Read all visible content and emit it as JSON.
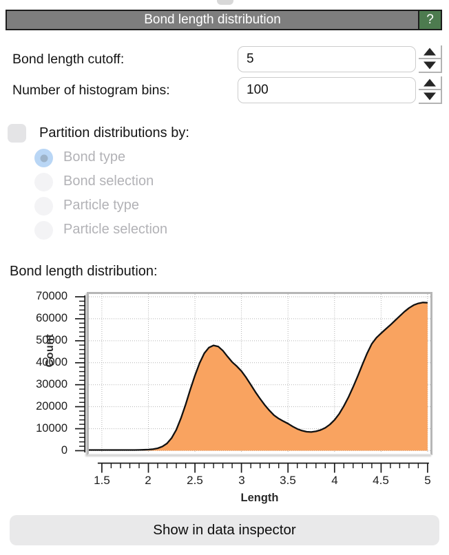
{
  "window": {
    "title": "Bond length distribution",
    "help_label": "?"
  },
  "fields": [
    {
      "label": "Bond length cutoff:",
      "value": "5"
    },
    {
      "label": "Number of histogram bins:",
      "value": "100"
    }
  ],
  "partition": {
    "checkbox_label": "Partition distributions by:",
    "checked": false,
    "options": [
      {
        "label": "Bond type",
        "selected": true
      },
      {
        "label": "Bond selection",
        "selected": false
      },
      {
        "label": "Particle type",
        "selected": false
      },
      {
        "label": "Particle selection",
        "selected": false
      }
    ]
  },
  "section_label": "Bond length distribution:",
  "footer_button_label": "Show in data inspector",
  "colors": {
    "titlebar_gray": "#7e7e7e",
    "help_green": "#4d7b4f",
    "area_fill": "#f9a360",
    "curve_line": "#111111",
    "radio_selected": "#b9d6f5",
    "disabled_text": "#b2b2b6"
  },
  "chart_data": {
    "type": "area",
    "title": "Bond length distribution",
    "xlabel": "Length",
    "ylabel": "Count",
    "xlim": [
      1.5,
      5
    ],
    "ylim": [
      0,
      70000
    ],
    "grid": "dotted",
    "legend": "none",
    "x_ticks": [
      1.5,
      2,
      2.5,
      3,
      3.5,
      4,
      4.5,
      5
    ],
    "x_tick_labels": [
      "1.5",
      "2",
      "2.5",
      "3",
      "3.5",
      "4",
      "4.5",
      "5"
    ],
    "x_minor_step": 0.1,
    "y_ticks": [
      0,
      10000,
      20000,
      30000,
      40000,
      50000,
      60000,
      70000
    ],
    "y_tick_labels": [
      "0",
      "10000",
      "20000",
      "30000",
      "40000",
      "50000",
      "60000",
      "70000"
    ],
    "y_minor_step": 2000,
    "x": [
      1.35,
      1.4,
      1.45,
      1.5,
      1.55,
      1.6,
      1.65,
      1.7,
      1.75,
      1.8,
      1.85,
      1.9,
      1.95,
      2.0,
      2.05,
      2.1,
      2.15,
      2.2,
      2.25,
      2.3,
      2.35,
      2.4,
      2.45,
      2.5,
      2.55,
      2.6,
      2.65,
      2.7,
      2.75,
      2.8,
      2.85,
      2.9,
      2.95,
      3.0,
      3.05,
      3.1,
      3.15,
      3.2,
      3.25,
      3.3,
      3.35,
      3.4,
      3.45,
      3.5,
      3.55,
      3.6,
      3.65,
      3.7,
      3.75,
      3.8,
      3.85,
      3.9,
      3.95,
      4.0,
      4.05,
      4.1,
      4.15,
      4.2,
      4.25,
      4.3,
      4.35,
      4.4,
      4.45,
      4.5,
      4.55,
      4.6,
      4.65,
      4.7,
      4.75,
      4.8,
      4.85,
      4.9,
      4.95,
      5.0
    ],
    "y": [
      300,
      300,
      300,
      300,
      300,
      300,
      300,
      300,
      300,
      300,
      300,
      350,
      400,
      500,
      700,
      1100,
      1900,
      3300,
      5800,
      9500,
      14800,
      21000,
      27800,
      34200,
      39800,
      44300,
      46900,
      47900,
      47400,
      45500,
      42800,
      40300,
      38400,
      36200,
      33300,
      30000,
      26700,
      23600,
      20800,
      18300,
      16100,
      14600,
      13400,
      12300,
      11000,
      9900,
      9100,
      8600,
      8500,
      8800,
      9400,
      10400,
      11900,
      14000,
      16800,
      20300,
      24400,
      29000,
      34000,
      39200,
      44300,
      48600,
      51400,
      53400,
      55300,
      57200,
      59200,
      61200,
      63200,
      64900,
      66200,
      67000,
      67400,
      67300
    ]
  }
}
